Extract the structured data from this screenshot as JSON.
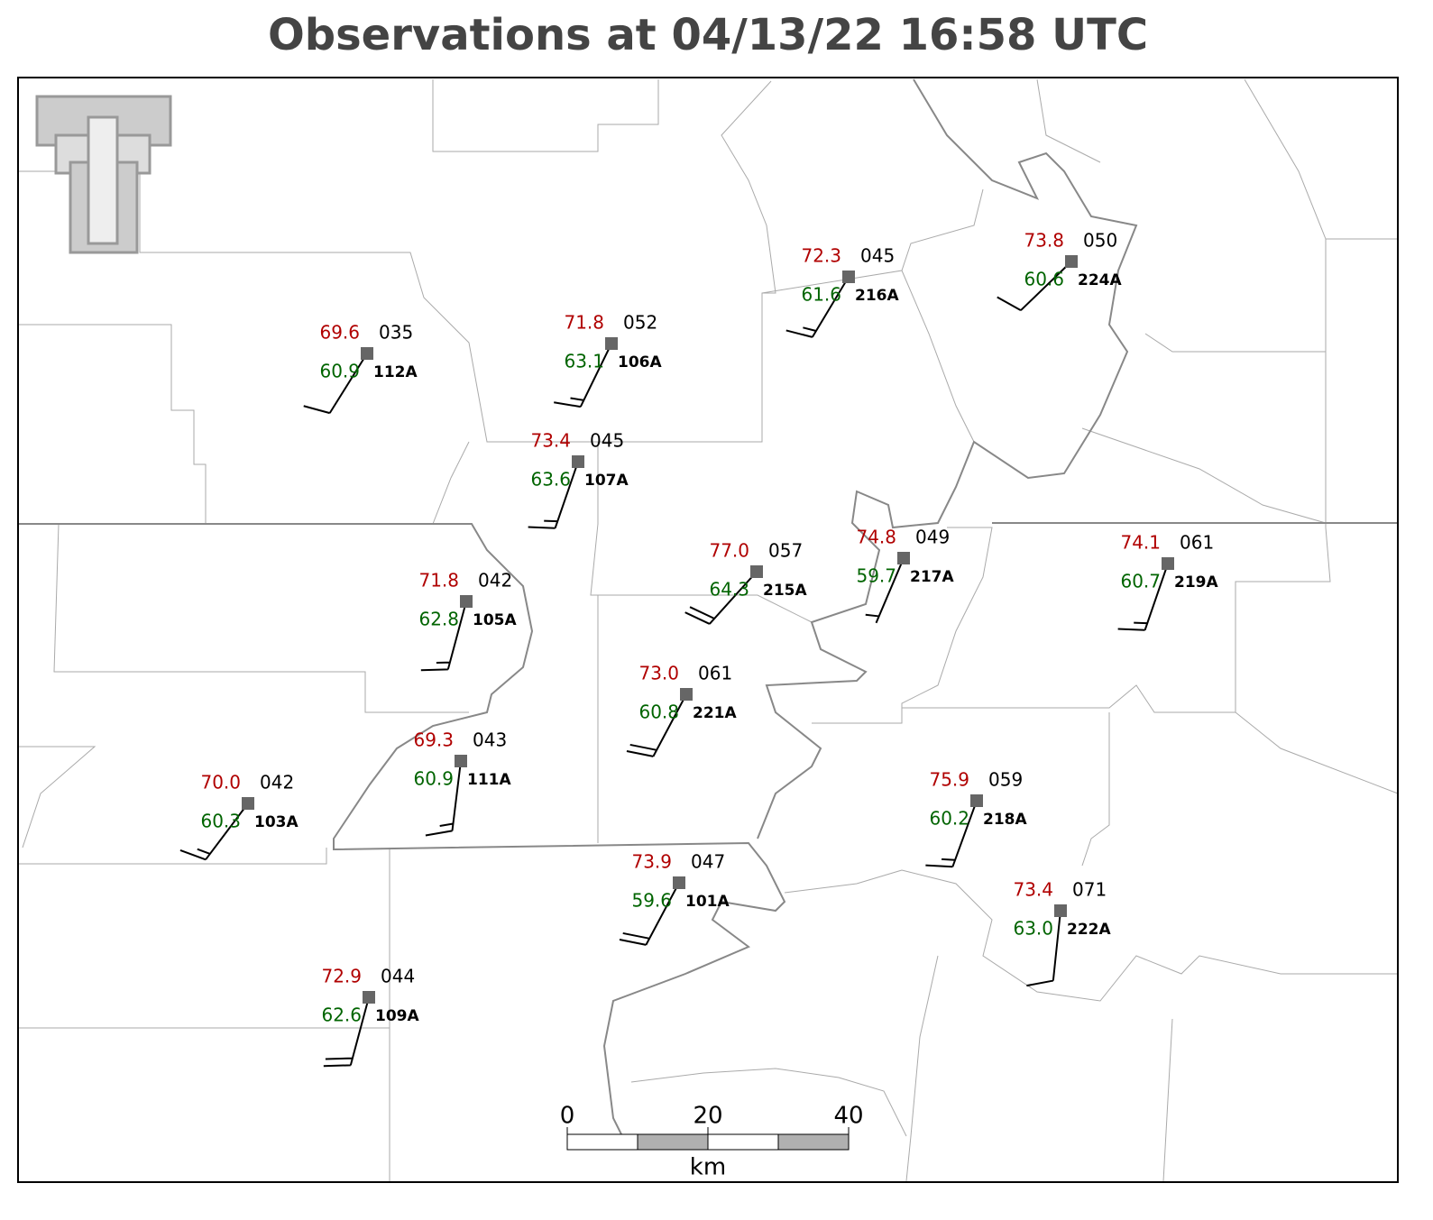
{
  "title": "Observations at 04/13/22 16:58 UTC",
  "stations": [
    {
      "id": "112A",
      "temperature": "69.6",
      "dewpoint": "60.9",
      "pressure": "035",
      "wind_direction": 212,
      "wind_speed": 10
    },
    {
      "id": "106A",
      "temperature": "71.8",
      "dewpoint": "63.1",
      "pressure": "052",
      "wind_direction": 206,
      "wind_speed": 15
    },
    {
      "id": "107A",
      "temperature": "73.4",
      "dewpoint": "63.6",
      "pressure": "045",
      "wind_direction": 199,
      "wind_speed": 15
    },
    {
      "id": "216A",
      "temperature": "72.3",
      "dewpoint": "61.6",
      "pressure": "045",
      "wind_direction": 211,
      "wind_speed": 15
    },
    {
      "id": "224A",
      "temperature": "73.8",
      "dewpoint": "60.6",
      "pressure": "050",
      "wind_direction": 226,
      "wind_speed": 10
    },
    {
      "id": "105A",
      "temperature": "71.8",
      "dewpoint": "62.8",
      "pressure": "042",
      "wind_direction": 195,
      "wind_speed": 15
    },
    {
      "id": "215A",
      "temperature": "77.0",
      "dewpoint": "64.3",
      "pressure": "057",
      "wind_direction": 222,
      "wind_speed": 20
    },
    {
      "id": "217A",
      "temperature": "74.8",
      "dewpoint": "59.7",
      "pressure": "049",
      "wind_direction": 203,
      "wind_speed": 5
    },
    {
      "id": "219A",
      "temperature": "74.1",
      "dewpoint": "60.7",
      "pressure": "061",
      "wind_direction": 199,
      "wind_speed": 15
    },
    {
      "id": "221A",
      "temperature": "73.0",
      "dewpoint": "60.8",
      "pressure": "061",
      "wind_direction": 208,
      "wind_speed": 20
    },
    {
      "id": "111A",
      "temperature": "69.3",
      "dewpoint": "60.9",
      "pressure": "043",
      "wind_direction": 187,
      "wind_speed": 15
    },
    {
      "id": "103A",
      "temperature": "70.0",
      "dewpoint": "60.3",
      "pressure": "042",
      "wind_direction": 217,
      "wind_speed": 15
    },
    {
      "id": "218A",
      "temperature": "75.9",
      "dewpoint": "60.2",
      "pressure": "059",
      "wind_direction": 200,
      "wind_speed": 15
    },
    {
      "id": "101A",
      "temperature": "73.9",
      "dewpoint": "59.6",
      "pressure": "047",
      "wind_direction": 208,
      "wind_speed": 20
    },
    {
      "id": "222A",
      "temperature": "73.4",
      "dewpoint": "63.0",
      "pressure": "071",
      "wind_direction": 186,
      "wind_speed": 10
    },
    {
      "id": "109A",
      "temperature": "72.9",
      "dewpoint": "62.6",
      "pressure": "044",
      "wind_direction": 195,
      "wind_speed": 20
    }
  ],
  "scale_bar": {
    "ticks": [
      0,
      20,
      40
    ],
    "unit": "km"
  }
}
